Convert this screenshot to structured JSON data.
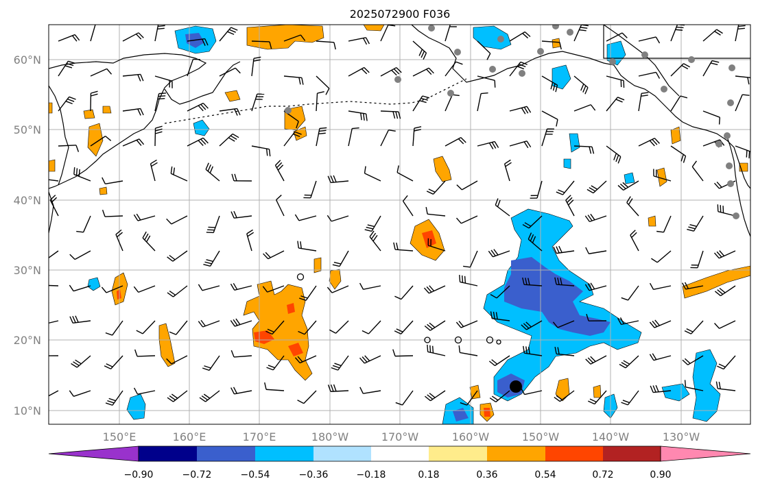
{
  "title": "2025072900 F036",
  "lat_labels": [
    "60°N",
    "50°N",
    "40°N",
    "30°N",
    "20°N",
    "10°N"
  ],
  "lon_labels": [
    "150°E",
    "160°E",
    "170°E",
    "180°W",
    "170°W",
    "160°W",
    "150°W",
    "140°W",
    "130°W"
  ],
  "colorbar": {
    "labels": [
      "−0.90",
      "−0.72",
      "−0.54",
      "−0.36",
      "−0.18",
      "0.18",
      "0.36",
      "0.54",
      "0.72",
      "0.90"
    ],
    "colors": [
      "#9932cc",
      "#00008b",
      "#3a5fcd",
      "#00bfff",
      "#b0e2ff",
      "#ffffff",
      "#ffec8b",
      "#ffa500",
      "#ff4500",
      "#b22222",
      "#ff88b0"
    ]
  },
  "map_colors": {
    "ocean": "#ffffff",
    "coast": "#000000",
    "grid": "#b0b0b0",
    "barb": "#000000",
    "station": "#808080"
  }
}
